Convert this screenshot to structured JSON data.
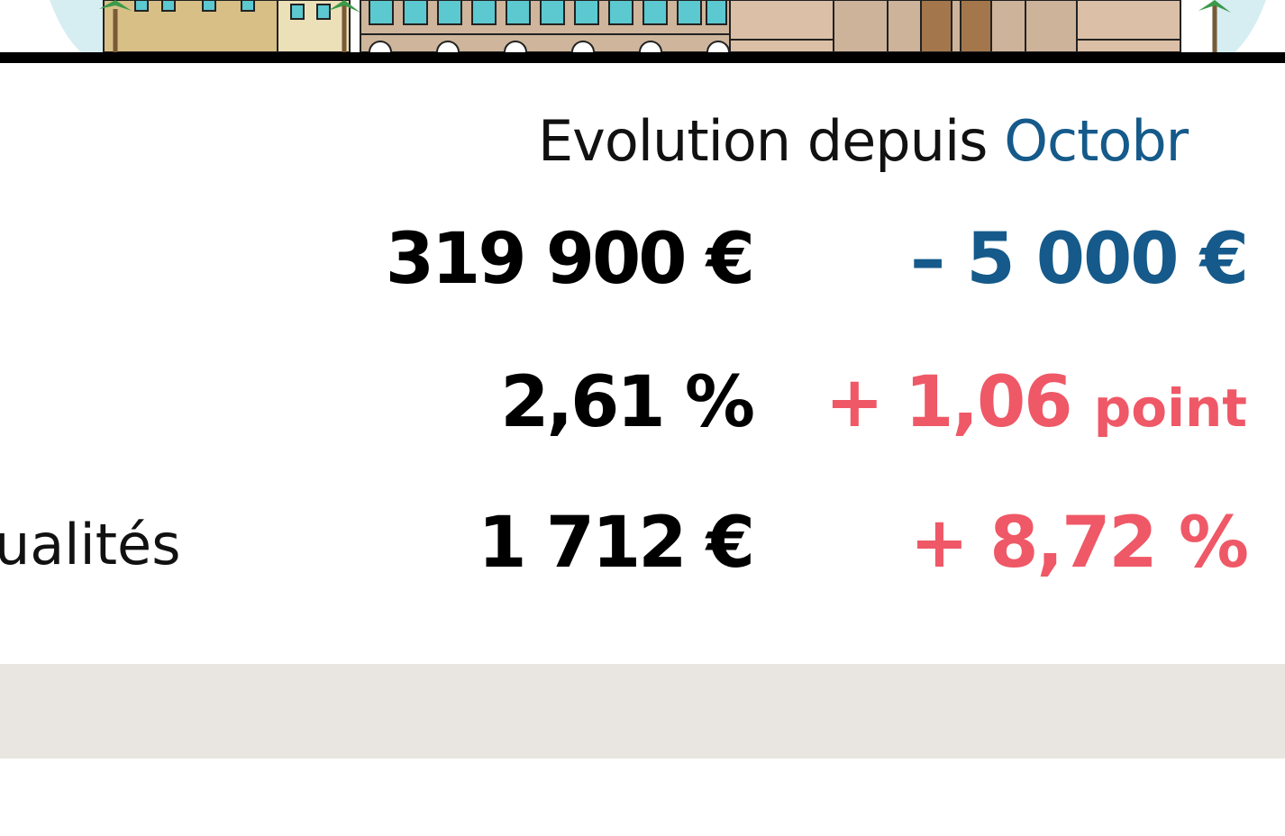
{
  "header": {
    "prefix": "Evolution depuis",
    "highlight": "Octobr"
  },
  "rows": [
    {
      "value": "319 900 €",
      "change": "– 5 000 €"
    },
    {
      "value": "2,61 %",
      "change": "+ 1,06",
      "unit": "point"
    },
    {
      "label": "ualités",
      "value": "1 712 €",
      "change": "+ 8,72 %"
    }
  ]
}
